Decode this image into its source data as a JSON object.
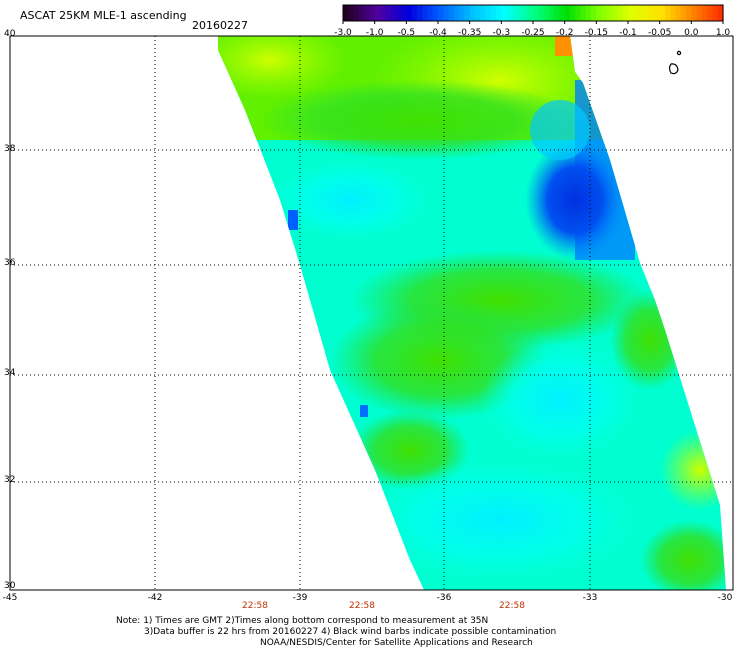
{
  "header": {
    "title": "ASCAT 25KM MLE-1 ascending",
    "date": "20160227"
  },
  "colorbar": {
    "labels": [
      "-3.0",
      "-1.0",
      "-0.5",
      "-0.4",
      "-0.35",
      "-0.3",
      "-0.25",
      "-0.2",
      "-0.15",
      "-0.1",
      "-0.05",
      "0.0",
      "1.0"
    ],
    "colors": [
      "#200020",
      "#5000a0",
      "#0000e0",
      "#0060ff",
      "#00c0ff",
      "#00ffff",
      "#00ff80",
      "#00e000",
      "#80ff00",
      "#e0ff00",
      "#ffe000",
      "#ff8000",
      "#ff2000"
    ]
  },
  "axes": {
    "lat_labels": [
      "40",
      "38",
      "36",
      "34",
      "32",
      "30"
    ],
    "lon_labels": [
      "-45",
      "-42",
      "-39",
      "-36",
      "-33",
      "-30"
    ],
    "time_labels": [
      "22:58",
      "22:58",
      "22:58"
    ]
  },
  "notes": {
    "line1": "Note: 1) Times are GMT 2)Times along bottom correspond to measurement at 35N",
    "line2": "3)Data buffer is 22 hrs from 20160227 4) Black wind barbs indicate possible contamination",
    "line3": "NOAA/NESDIS/Center for Satellite Applications and Research"
  }
}
